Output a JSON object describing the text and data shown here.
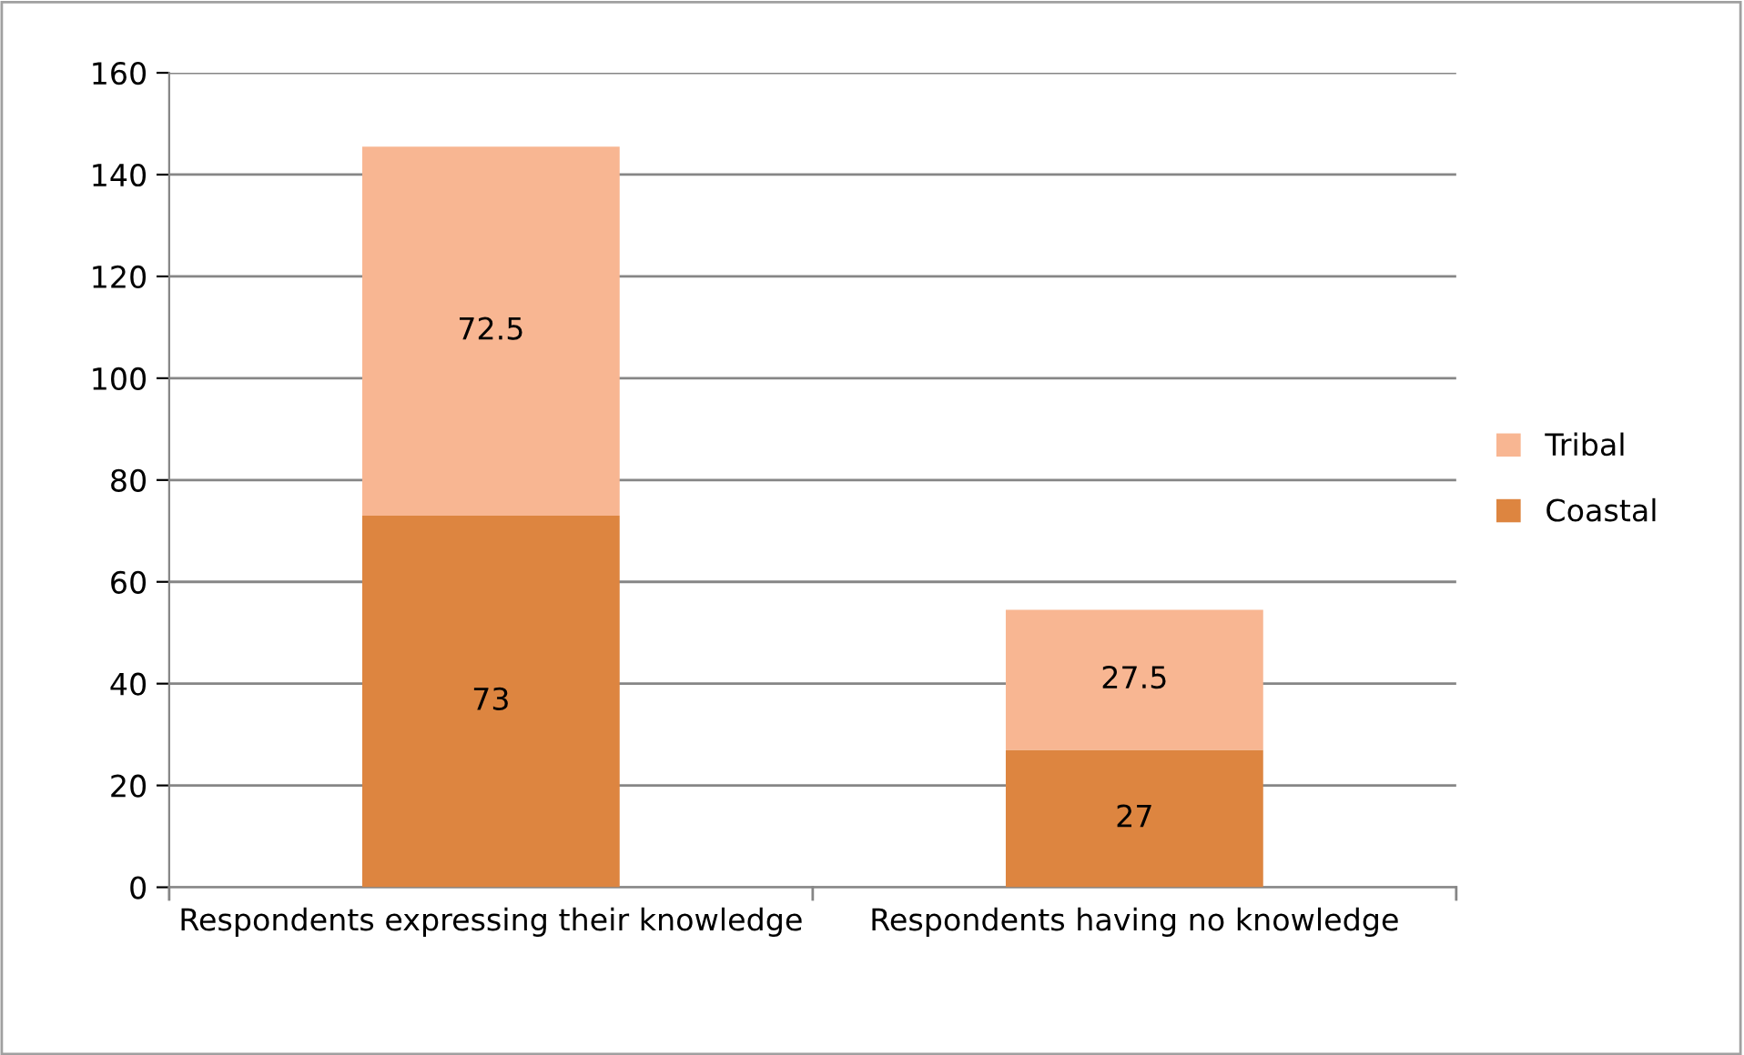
{
  "chart_data": {
    "type": "bar",
    "stacked": true,
    "categories": [
      "Respondents expressing their knowledge",
      "Respondents having no knowledge"
    ],
    "series": [
      {
        "name": "Coastal",
        "color": "#dd8540",
        "values": [
          73,
          27
        ]
      },
      {
        "name": "Tribal",
        "color": "#f8b692",
        "values": [
          72.5,
          27.5
        ]
      }
    ],
    "ylim": [
      0,
      160
    ],
    "yticks": [
      0,
      20,
      40,
      60,
      80,
      100,
      120,
      140,
      160
    ],
    "grid": "y",
    "legend": "right",
    "data_labels": true
  }
}
